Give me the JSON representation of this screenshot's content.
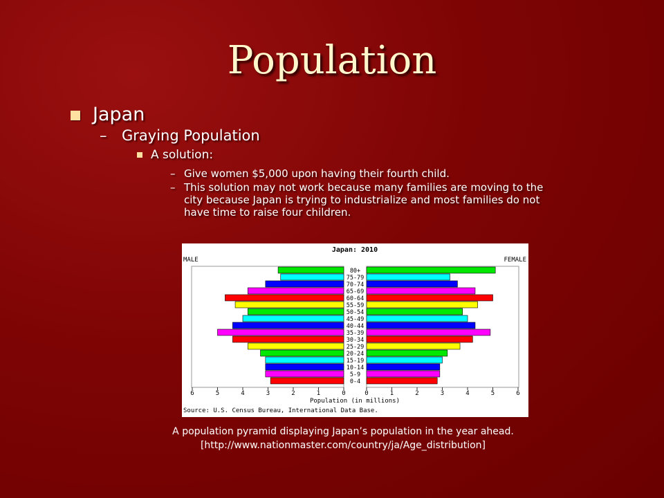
{
  "slide": {
    "title": "Population",
    "bullets": {
      "level1": "Japan",
      "level2": "Graying Population",
      "level3": "A solution:",
      "level4": [
        "Give women $5,000 upon having their fourth child.",
        "This solution may not work because many families are moving to the city because Japan is trying to industrialize and most families do not have time to raise four children."
      ]
    },
    "dash": "–",
    "caption_line1": "A population pyramid displaying Japan’s population in the year ahead.",
    "caption_line2": "[http://www.nationmaster.com/country/ja/Age_distribution]"
  },
  "chart_data": {
    "type": "bar",
    "title": "Japan: 2010",
    "left_label": "MALE",
    "right_label": "FEMALE",
    "xlabel": "Population (in millions)",
    "source": "Source: U.S. Census Bureau, International Data Base.",
    "xlim": [
      0,
      6
    ],
    "ticks": [
      6,
      5,
      4,
      3,
      2,
      1,
      0
    ],
    "categories": [
      "80+",
      "75-79",
      "70-74",
      "65-69",
      "60-64",
      "55-59",
      "50-54",
      "45-49",
      "40-44",
      "35-39",
      "30-34",
      "25-29",
      "20-24",
      "15-19",
      "10-14",
      "5-9",
      "0-4"
    ],
    "series": [
      {
        "name": "MALE",
        "values": [
          2.6,
          2.5,
          3.1,
          3.8,
          4.7,
          4.3,
          3.8,
          4.0,
          4.4,
          5.0,
          4.4,
          3.8,
          3.3,
          3.1,
          3.1,
          3.1,
          2.9
        ]
      },
      {
        "name": "FEMALE",
        "values": [
          5.1,
          3.3,
          3.6,
          4.3,
          5.0,
          4.4,
          3.8,
          4.0,
          4.3,
          4.9,
          4.2,
          3.7,
          3.2,
          3.0,
          2.9,
          2.9,
          2.8
        ]
      }
    ],
    "bar_colors": [
      "#00e800",
      "#00ffff",
      "#0000ff",
      "#ff00ff",
      "#ff0000",
      "#ffff00",
      "#00e800",
      "#00ffff",
      "#0000ff",
      "#ff00ff",
      "#ff0000",
      "#ffff00",
      "#00e800",
      "#00ffff",
      "#0000ff",
      "#ff00ff",
      "#ff0000"
    ]
  }
}
